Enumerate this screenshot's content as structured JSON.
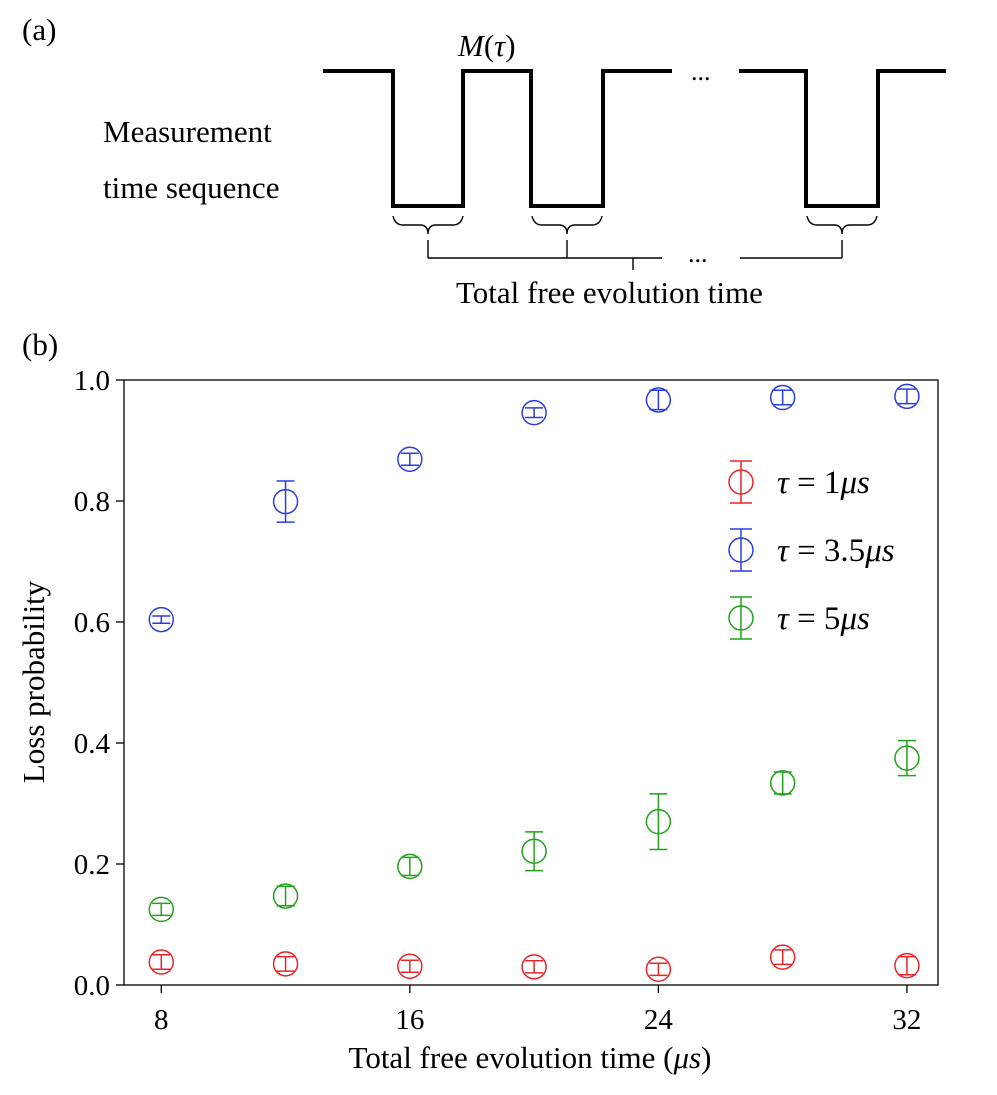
{
  "panel_a": {
    "label": "(a)",
    "pulse_label_prefix": "M",
    "pulse_label_open": "(",
    "pulse_label_var": "τ",
    "pulse_label_close": ")",
    "ellipsis": "...",
    "row_label_line1": "Measurement",
    "row_label_line2": "time sequence",
    "bracket_label": "Total free evolution time"
  },
  "panel_b_label": "(b)",
  "chart_data": {
    "type": "scatter",
    "title": "",
    "xlabel_prefix": "Total free evolution time (",
    "xlabel_unit": "μs",
    "xlabel_suffix": ")",
    "ylabel": "Loss probability",
    "xlim": [
      6.8,
      33
    ],
    "ylim": [
      0.0,
      1.0
    ],
    "xticks": [
      8,
      16,
      24,
      32
    ],
    "xtick_labels": [
      "8",
      "16",
      "24",
      "32"
    ],
    "yticks": [
      0.0,
      0.2,
      0.4,
      0.6,
      0.8,
      1.0
    ],
    "ytick_labels": [
      "0.0",
      "0.2",
      "0.4",
      "0.6",
      "0.8",
      "1.0"
    ],
    "grid": false,
    "legend_position": "right",
    "x": [
      8,
      12,
      16,
      20,
      24,
      28,
      32
    ],
    "series": [
      {
        "name": "τ = 1μs",
        "legend_tau": "τ",
        "legend_eq": " = 1",
        "legend_unit": "μs",
        "color": "#e8262a",
        "values": [
          0.038,
          0.035,
          0.031,
          0.03,
          0.026,
          0.046,
          0.032
        ],
        "errors": [
          0.012,
          0.012,
          0.01,
          0.01,
          0.01,
          0.012,
          0.015
        ]
      },
      {
        "name": "τ = 3.5μs",
        "legend_tau": "τ",
        "legend_eq": " = 3.5",
        "legend_unit": "μs",
        "color": "#2a3fe0",
        "values": [
          0.604,
          0.799,
          0.869,
          0.946,
          0.967,
          0.971,
          0.973
        ],
        "errors": [
          0.006,
          0.034,
          0.01,
          0.008,
          0.016,
          0.012,
          0.012
        ]
      },
      {
        "name": "τ = 5μs",
        "legend_tau": "τ",
        "legend_eq": " = 5",
        "legend_unit": "μs",
        "color": "#22a21a",
        "values": [
          0.125,
          0.147,
          0.196,
          0.221,
          0.27,
          0.334,
          0.375
        ],
        "errors": [
          0.01,
          0.016,
          0.015,
          0.032,
          0.046,
          0.018,
          0.029
        ]
      }
    ]
  }
}
